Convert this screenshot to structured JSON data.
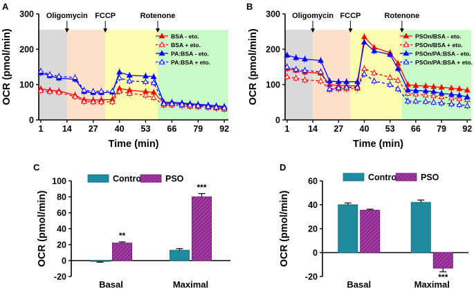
{
  "chart_data": [
    {
      "panel": "A",
      "type": "line",
      "xlabel": "Time (min)",
      "ylabel": "OCR (pmol/min)",
      "ylim": [
        0,
        300
      ],
      "yticks": [
        0,
        100,
        200,
        300
      ],
      "xticks": [
        1,
        14,
        27,
        40,
        53,
        66,
        79,
        92
      ],
      "phases": [
        {
          "name": "basal",
          "color": "#d9d9d9",
          "x0": 0,
          "x1": 14
        },
        {
          "name": "oligomycin",
          "color": "#fde0c9",
          "x0": 14,
          "x1": 33
        },
        {
          "name": "fccp",
          "color": "#fdfdb0",
          "x0": 33,
          "x1": 59
        },
        {
          "name": "rotenone",
          "color": "#c9fbc9",
          "x0": 59,
          "x1": 94
        }
      ],
      "injections": [
        {
          "label": "Oligomycin",
          "x": 14
        },
        {
          "label": "FCCP",
          "x": 33
        },
        {
          "label": "Rotenone",
          "x": 59
        }
      ],
      "x": [
        1,
        5.5,
        10,
        18,
        22.5,
        27,
        31,
        36.5,
        40,
        45,
        53,
        57,
        62,
        66,
        71,
        75,
        79,
        84,
        88,
        92
      ],
      "series": [
        {
          "name": "BSA - eto.",
          "color": "#ff0000",
          "dashed": false,
          "values": [
            88,
            84,
            82,
            70,
            57,
            56,
            57,
            58,
            89,
            84,
            80,
            78,
            47,
            47,
            45,
            44,
            42,
            40,
            38,
            35
          ]
        },
        {
          "name": "BSA + eto.",
          "color": "#ff0000",
          "dashed": true,
          "values": [
            83,
            80,
            78,
            66,
            52,
            51,
            51,
            51,
            81,
            75,
            70,
            63,
            42,
            42,
            40,
            38,
            37,
            35,
            33,
            30
          ]
        },
        {
          "name": "PA:BSA - eto.",
          "color": "#0000ff",
          "dashed": false,
          "values": [
            133,
            125,
            118,
            115,
            80,
            77,
            77,
            78,
            135,
            126,
            124,
            122,
            50,
            50,
            48,
            46,
            44,
            42,
            40,
            38
          ]
        },
        {
          "name": "PA:BSA + eto.",
          "color": "#0000ff",
          "dashed": true,
          "values": [
            138,
            128,
            123,
            120,
            84,
            81,
            81,
            82,
            119,
            110,
            108,
            105,
            46,
            46,
            44,
            42,
            40,
            38,
            36,
            34
          ]
        }
      ]
    },
    {
      "panel": "B",
      "type": "line",
      "xlabel": "Time (min)",
      "ylabel": "OCR (pmol/min)",
      "ylim": [
        0,
        300
      ],
      "yticks": [
        0,
        100,
        200,
        300
      ],
      "xticks": [
        1,
        14,
        27,
        40,
        53,
        66,
        79,
        92
      ],
      "phases": [
        {
          "name": "basal",
          "color": "#d9d9d9",
          "x0": 0,
          "x1": 14
        },
        {
          "name": "oligomycin",
          "color": "#fde0c9",
          "x0": 14,
          "x1": 33
        },
        {
          "name": "fccp",
          "color": "#fdfdb0",
          "x0": 33,
          "x1": 59
        },
        {
          "name": "rotenone",
          "color": "#c9fbc9",
          "x0": 59,
          "x1": 94
        }
      ],
      "injections": [
        {
          "label": "Oligomycin",
          "x": 14
        },
        {
          "label": "FCCP",
          "x": 33
        },
        {
          "label": "Rotenone",
          "x": 59
        }
      ],
      "x": [
        1,
        5.5,
        10,
        18,
        22.5,
        27,
        31,
        36.5,
        40,
        45,
        53,
        57,
        62,
        66,
        71,
        75,
        79,
        84,
        88,
        92
      ],
      "series": [
        {
          "name": "PSOn/BSA - eto.",
          "color": "#ff0000",
          "dashed": false,
          "values": [
            145,
            140,
            135,
            132,
            100,
            97,
            97,
            96,
            235,
            205,
            190,
            160,
            100,
            97,
            96,
            94,
            92,
            90,
            88,
            84
          ]
        },
        {
          "name": "PSOn/BSA + eto.",
          "color": "#ff0000",
          "dashed": true,
          "values": [
            122,
            118,
            113,
            110,
            86,
            88,
            88,
            89,
            145,
            133,
            120,
            112,
            75,
            73,
            70,
            68,
            65,
            62,
            60,
            57
          ]
        },
        {
          "name": "PSOn/PA:BSA - eto.",
          "color": "#0000ff",
          "dashed": false,
          "values": [
            183,
            176,
            172,
            168,
            110,
            108,
            108,
            108,
            220,
            195,
            185,
            145,
            85,
            83,
            82,
            80,
            75,
            72,
            70,
            65
          ]
        },
        {
          "name": "PSOn/PA:BSA + eto.",
          "color": "#0000ff",
          "dashed": true,
          "values": [
            150,
            143,
            140,
            136,
            88,
            91,
            92,
            92,
            130,
            110,
            100,
            88,
            53,
            53,
            52,
            50,
            48,
            45,
            43,
            40
          ]
        }
      ]
    },
    {
      "panel": "C",
      "type": "bar",
      "xlabel": "",
      "ylabel": "OCR (pmol/min)",
      "ylim": [
        -20,
        100
      ],
      "yticks": [
        -20,
        0,
        20,
        40,
        60,
        80,
        100
      ],
      "categories": [
        "Basal",
        "Maximal"
      ],
      "series": [
        {
          "name": "Control",
          "color": "#1f8b9f",
          "hatched": false,
          "values": [
            -1,
            13
          ],
          "errors": [
            1,
            2
          ]
        },
        {
          "name": "PSO",
          "color": "#a43aa6",
          "hatched": true,
          "values": [
            22,
            80
          ],
          "errors": [
            1.5,
            4
          ]
        }
      ],
      "annotations": [
        {
          "category": "Basal",
          "series": "PSO",
          "text": "**"
        },
        {
          "category": "Maximal",
          "series": "PSO",
          "text": "***"
        }
      ]
    },
    {
      "panel": "D",
      "type": "bar",
      "xlabel": "",
      "ylabel": "OCR (pmol/min)",
      "ylim": [
        -20,
        60
      ],
      "yticks": [
        -20,
        0,
        20,
        40,
        60
      ],
      "categories": [
        "Basal",
        "Maximal"
      ],
      "series": [
        {
          "name": "Control",
          "color": "#1f8b9f",
          "hatched": false,
          "values": [
            40,
            42
          ],
          "errors": [
            1.5,
            2
          ]
        },
        {
          "name": "PSO",
          "color": "#a43aa6",
          "hatched": true,
          "values": [
            35.5,
            -13
          ],
          "errors": [
            0.8,
            3
          ]
        }
      ],
      "annotations": [
        {
          "category": "Maximal",
          "series": "PSO",
          "text": "***"
        }
      ]
    }
  ]
}
